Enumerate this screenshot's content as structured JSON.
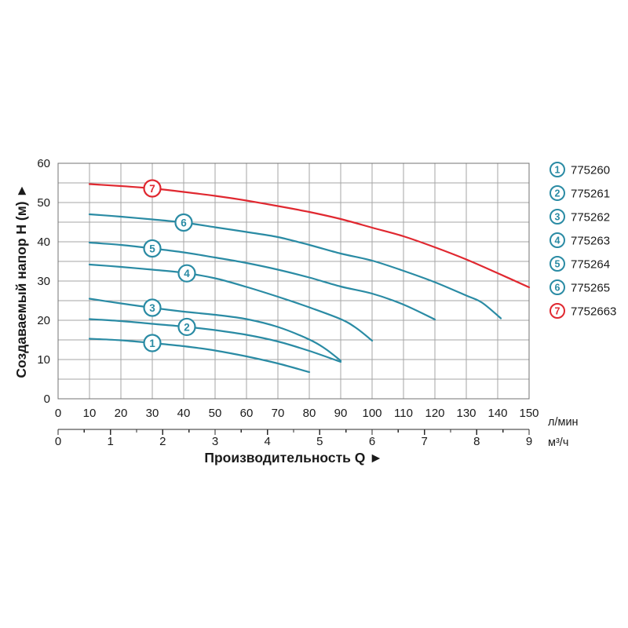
{
  "chart_data": {
    "type": "line",
    "title": "",
    "xlabel": "Производительность Q ►",
    "ylabel": "Создаваемый напор H (м) ▲",
    "x_primary": {
      "unit": "л/мин",
      "min": 0,
      "max": 150,
      "tick_step": 10
    },
    "x_secondary": {
      "unit": "м³/ч",
      "min": 0,
      "max": 9,
      "tick_step": 1,
      "minor_step": 0.5
    },
    "y": {
      "min": 0,
      "max": 60,
      "tick_step": 10,
      "grid_step": 5
    },
    "grid": true,
    "legend_position": "right",
    "colors": {
      "curve_teal": "#2a8ba4",
      "curve_red": "#e02830",
      "grid": "#a5a5a5",
      "border": "#737373",
      "axis": "#2b2b2b",
      "text": "#1a1a1a"
    },
    "series": [
      {
        "id": "1",
        "model": "775260",
        "color_key": "curve_teal",
        "marker_q": 30,
        "points": [
          [
            10,
            15.3
          ],
          [
            20,
            14.9
          ],
          [
            30,
            14.2
          ],
          [
            40,
            13.4
          ],
          [
            50,
            12.3
          ],
          [
            60,
            10.8
          ],
          [
            70,
            9.0
          ],
          [
            80,
            6.8
          ]
        ]
      },
      {
        "id": "2",
        "model": "775261",
        "color_key": "curve_teal",
        "marker_q": 41,
        "points": [
          [
            10,
            20.3
          ],
          [
            20,
            19.8
          ],
          [
            30,
            19.1
          ],
          [
            40,
            18.4
          ],
          [
            50,
            17.5
          ],
          [
            60,
            16.3
          ],
          [
            70,
            14.6
          ],
          [
            80,
            12.2
          ],
          [
            90,
            9.4
          ]
        ]
      },
      {
        "id": "3",
        "model": "775262",
        "color_key": "curve_teal",
        "marker_q": 30,
        "points": [
          [
            10,
            25.5
          ],
          [
            20,
            24.3
          ],
          [
            30,
            23.2
          ],
          [
            40,
            22.2
          ],
          [
            50,
            21.4
          ],
          [
            60,
            20.3
          ],
          [
            70,
            18.3
          ],
          [
            80,
            15.1
          ],
          [
            85,
            12.8
          ],
          [
            90,
            9.7
          ]
        ]
      },
      {
        "id": "4",
        "model": "775263",
        "color_key": "curve_teal",
        "marker_q": 41,
        "points": [
          [
            10,
            34.2
          ],
          [
            20,
            33.6
          ],
          [
            30,
            32.9
          ],
          [
            40,
            32.1
          ],
          [
            50,
            30.7
          ],
          [
            60,
            28.5
          ],
          [
            70,
            26.0
          ],
          [
            80,
            23.3
          ],
          [
            90,
            20.3
          ],
          [
            95,
            18.0
          ],
          [
            100,
            14.8
          ]
        ]
      },
      {
        "id": "5",
        "model": "775264",
        "color_key": "curve_teal",
        "marker_q": 30,
        "points": [
          [
            10,
            39.8
          ],
          [
            20,
            39.2
          ],
          [
            30,
            38.3
          ],
          [
            40,
            37.3
          ],
          [
            50,
            36.0
          ],
          [
            60,
            34.6
          ],
          [
            70,
            32.9
          ],
          [
            80,
            30.9
          ],
          [
            90,
            28.6
          ],
          [
            100,
            26.8
          ],
          [
            110,
            24.0
          ],
          [
            120,
            20.2
          ]
        ]
      },
      {
        "id": "6",
        "model": "775265",
        "color_key": "curve_teal",
        "marker_q": 40,
        "points": [
          [
            10,
            47.0
          ],
          [
            20,
            46.4
          ],
          [
            30,
            45.7
          ],
          [
            40,
            44.9
          ],
          [
            50,
            43.7
          ],
          [
            60,
            42.5
          ],
          [
            70,
            41.2
          ],
          [
            80,
            39.2
          ],
          [
            90,
            37.0
          ],
          [
            100,
            35.2
          ],
          [
            110,
            32.6
          ],
          [
            120,
            29.7
          ],
          [
            130,
            26.3
          ],
          [
            135,
            24.5
          ],
          [
            141,
            20.5
          ]
        ]
      },
      {
        "id": "7",
        "model": "7752663",
        "color_key": "curve_red",
        "marker_q": 30,
        "points": [
          [
            10,
            54.7
          ],
          [
            20,
            54.2
          ],
          [
            30,
            53.6
          ],
          [
            40,
            52.7
          ],
          [
            50,
            51.7
          ],
          [
            60,
            50.5
          ],
          [
            70,
            49.1
          ],
          [
            80,
            47.6
          ],
          [
            90,
            45.8
          ],
          [
            100,
            43.6
          ],
          [
            110,
            41.4
          ],
          [
            120,
            38.6
          ],
          [
            130,
            35.5
          ],
          [
            140,
            32.0
          ],
          [
            150,
            28.4
          ]
        ]
      }
    ]
  }
}
